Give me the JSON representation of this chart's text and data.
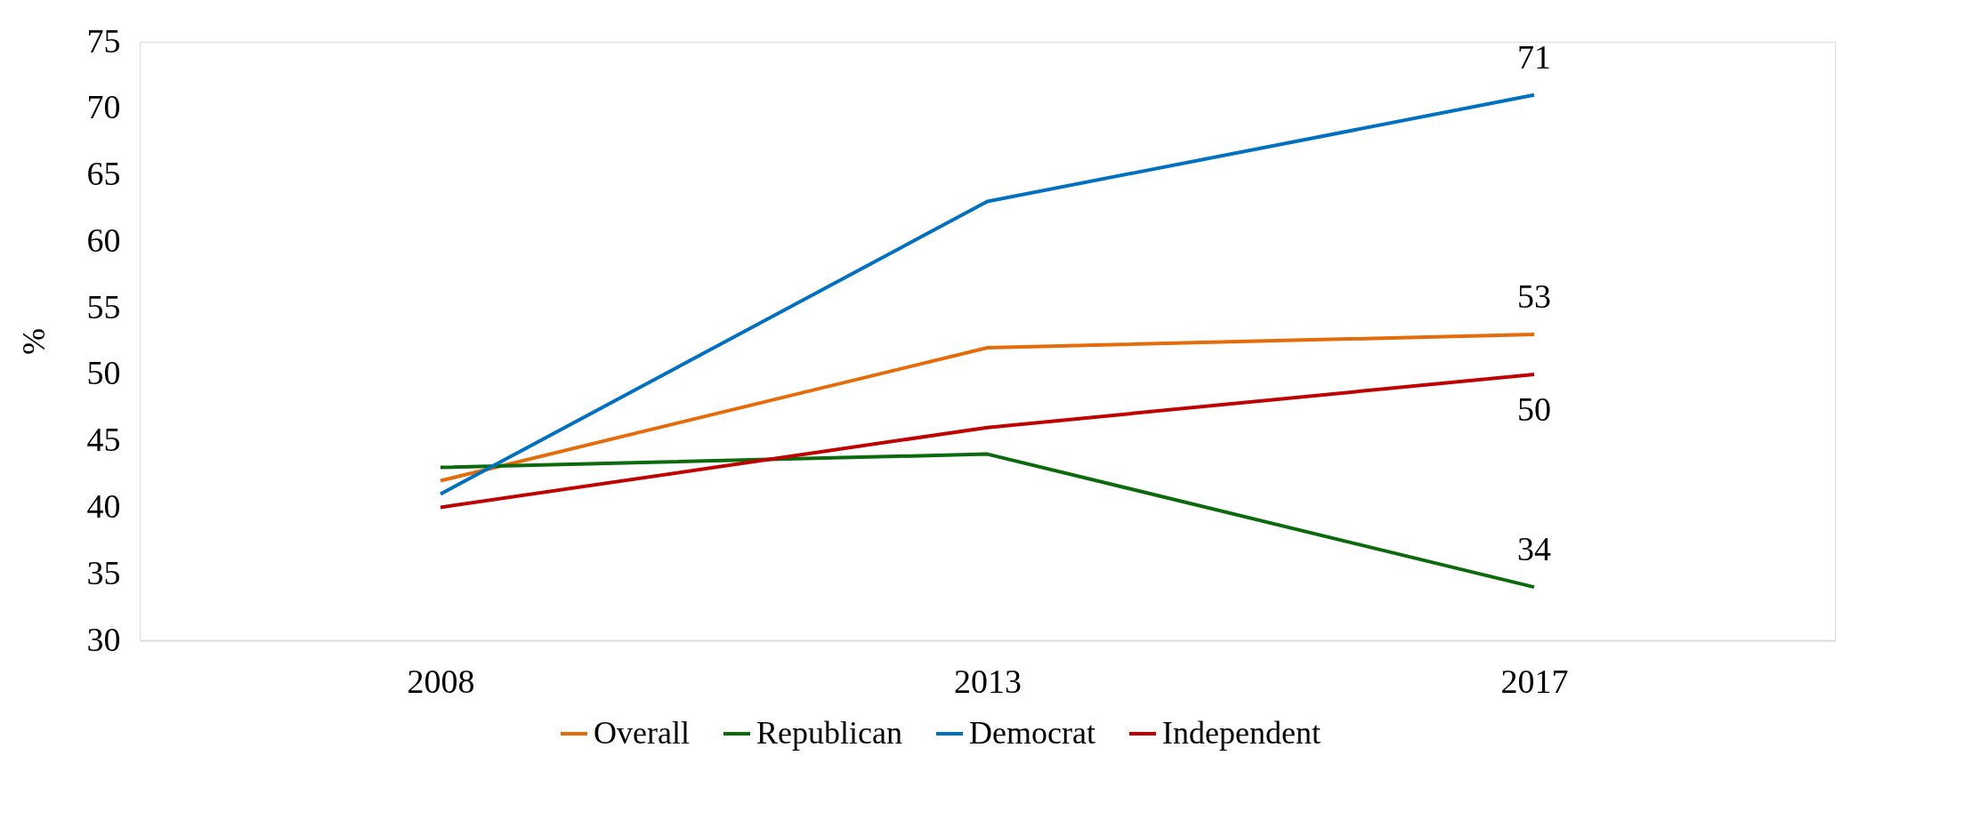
{
  "chart_data": {
    "type": "line",
    "ylabel": "%",
    "categories": [
      "2008",
      "2013",
      "2017"
    ],
    "series": [
      {
        "name": "Overall",
        "color": "#e46c0a",
        "values": [
          42,
          52,
          53
        ],
        "value_labels": [
          null,
          null,
          "53"
        ]
      },
      {
        "name": "Republican",
        "color": "#0b6a0b",
        "values": [
          43,
          44,
          34
        ],
        "value_labels": [
          null,
          null,
          "34"
        ]
      },
      {
        "name": "Democrat",
        "color": "#0070c0",
        "values": [
          41,
          63,
          71
        ],
        "value_labels": [
          null,
          null,
          "71"
        ]
      },
      {
        "name": "Independent",
        "color": "#c00000",
        "values": [
          40,
          46,
          50
        ],
        "value_labels": [
          null,
          null,
          "50"
        ]
      }
    ],
    "ylim": [
      30,
      75
    ],
    "yticks": [
      30,
      35,
      40,
      45,
      50,
      55,
      60,
      65,
      70,
      75
    ],
    "grid": false,
    "legend": "bottom",
    "marker": "none",
    "line_style": "solid"
  }
}
